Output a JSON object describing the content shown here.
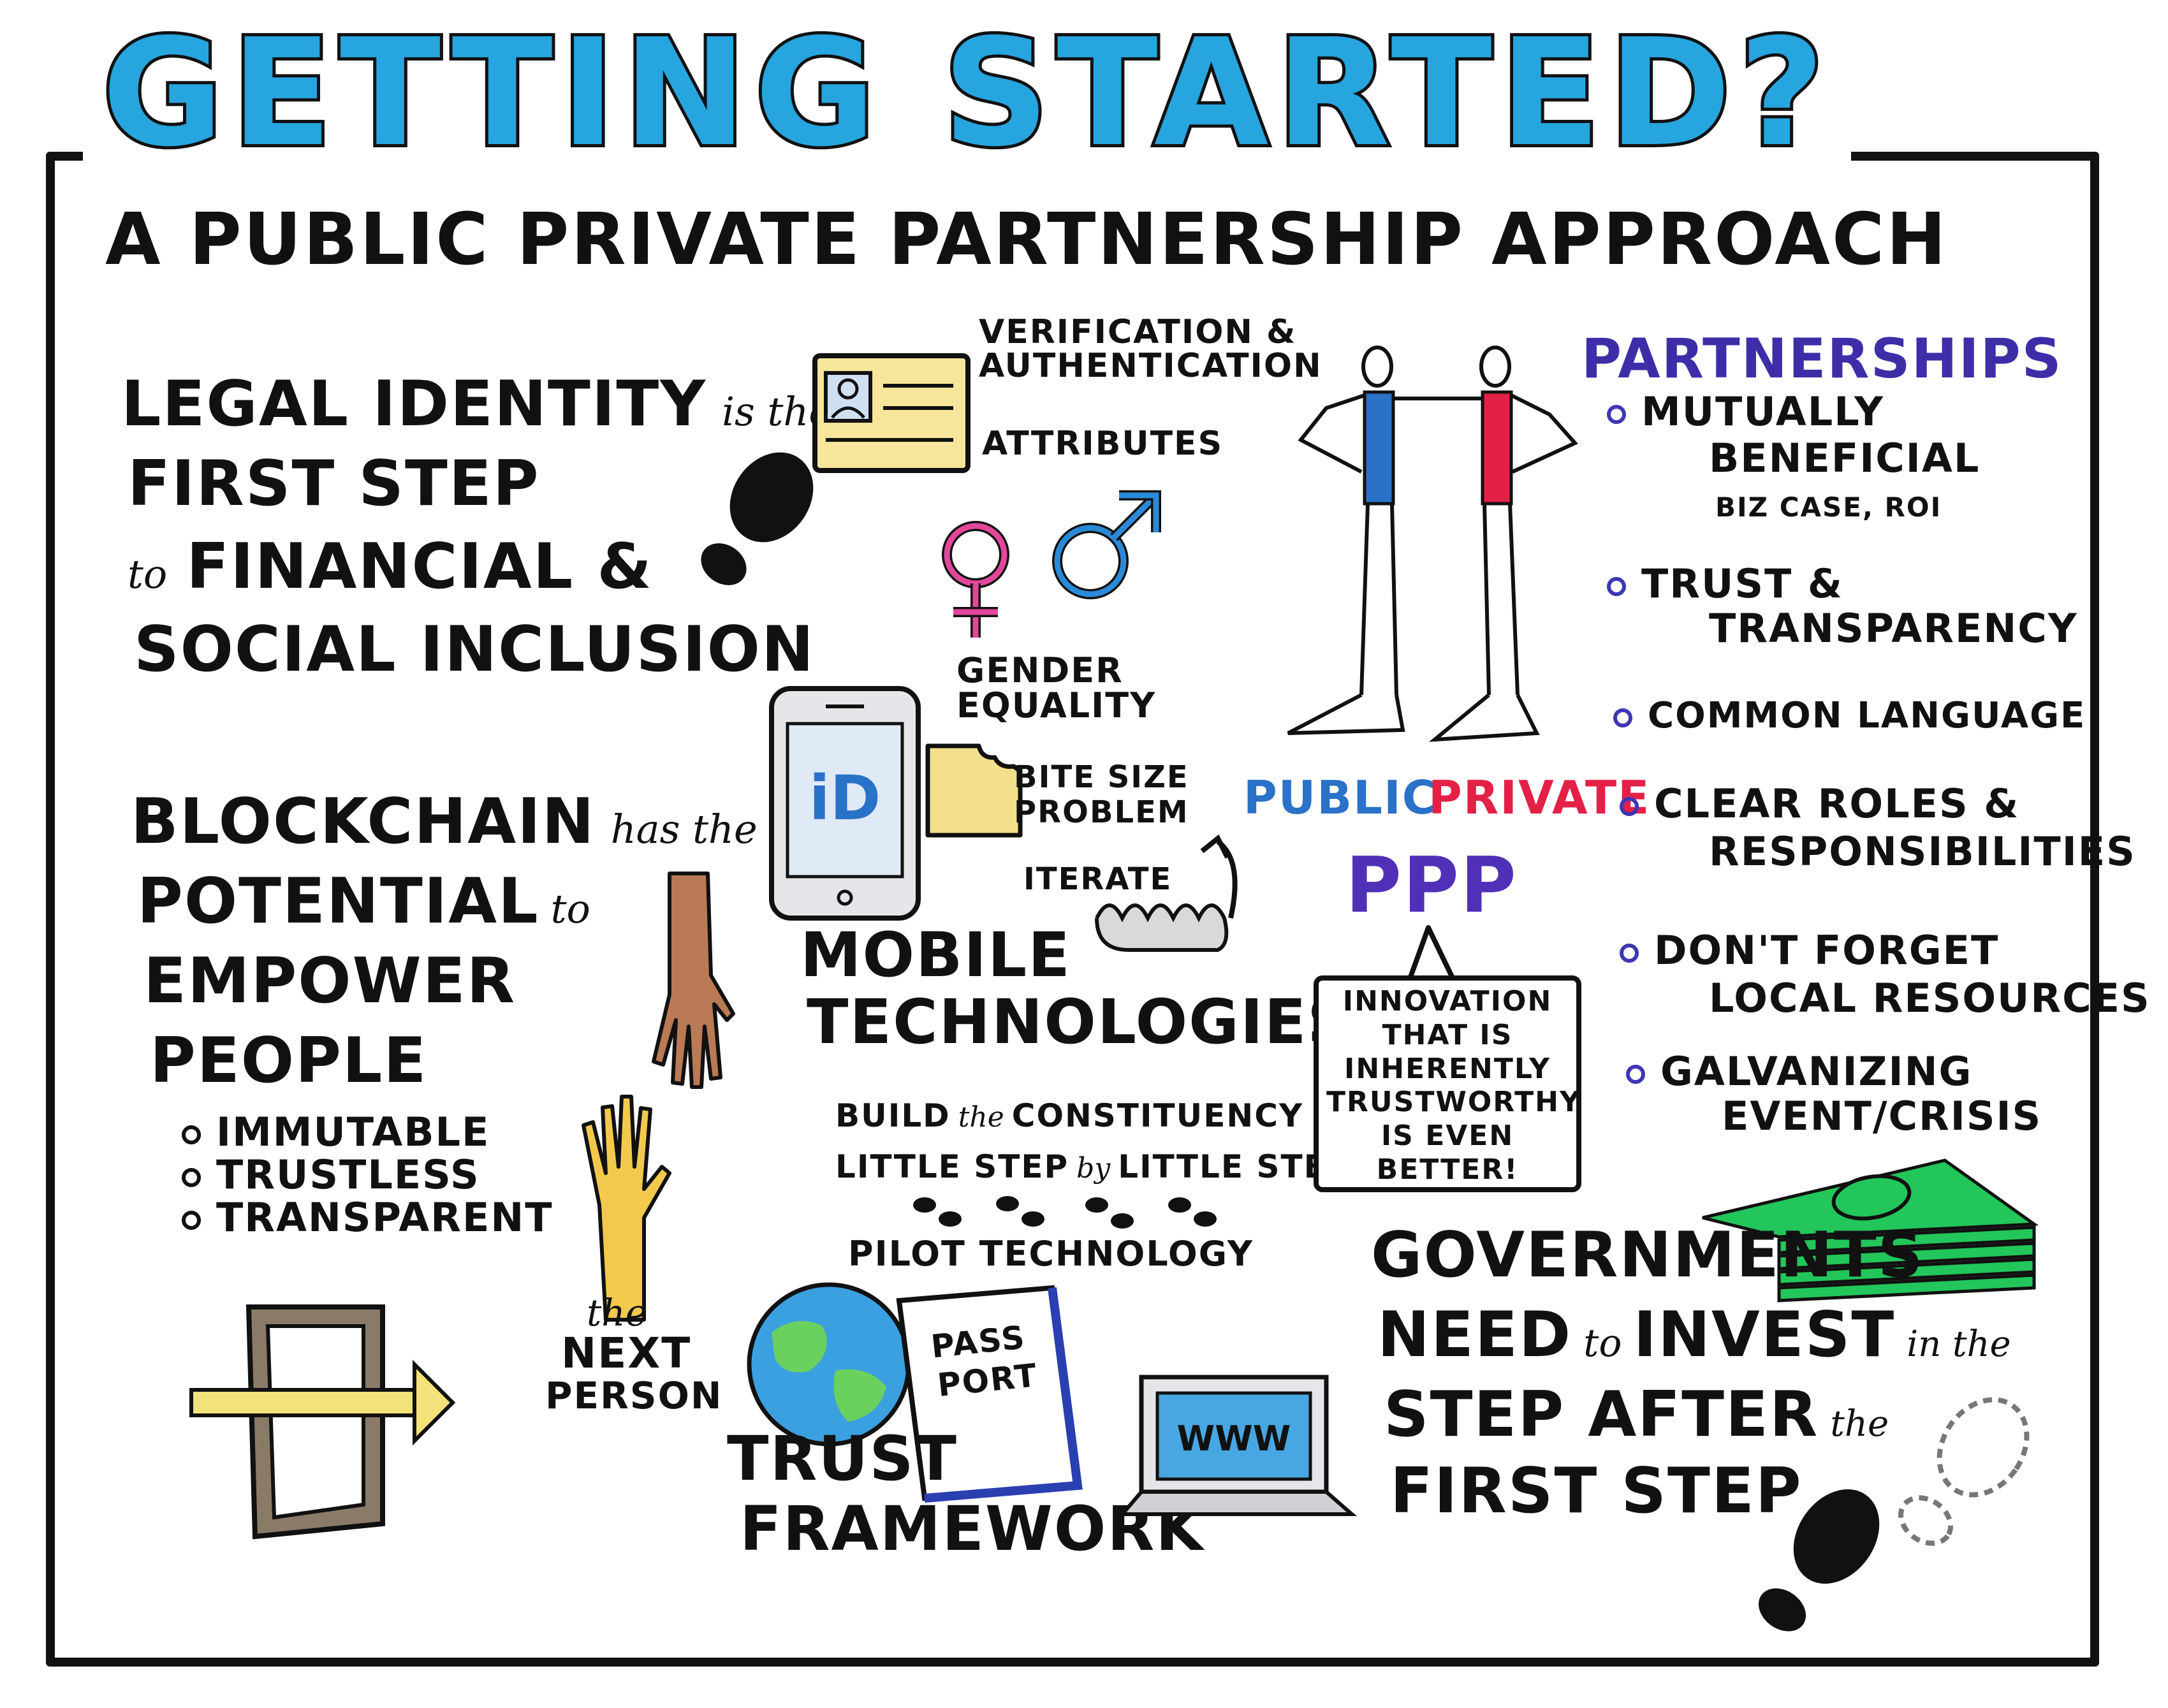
{
  "title": "GETTING STARTED?",
  "subtitle": "A PUBLIC PRIVATE PARTNERSHIP APPROACH",
  "legal_identity": {
    "line1": "LEGAL IDENTITY",
    "line1_script": "is the",
    "line2": "FIRST STEP",
    "line3_script": "to",
    "line3": "FINANCIAL &",
    "line4": "SOCIAL INCLUSION"
  },
  "id_card": {
    "label_top": [
      "VERIFICATION &",
      "AUTHENTICATION"
    ],
    "label_attr": "ATTRIBUTES"
  },
  "gender": [
    "GENDER",
    "EQUALITY"
  ],
  "blockchain": {
    "line1": "BLOCKCHAIN",
    "line1_script": "has the",
    "line2": "POTENTIAL",
    "line2_script": "to",
    "line3": "EMPOWER",
    "line4": "PEOPLE",
    "bullets": [
      "IMMUTABLE",
      "TRUSTLESS",
      "TRANSPARENT"
    ]
  },
  "mobile": {
    "phone_logo": "iD",
    "bite": [
      "BITE SIZE",
      "PROBLEM"
    ],
    "iterate": "ITERATE",
    "title": [
      "MOBILE",
      "TECHNOLOGIES"
    ]
  },
  "next_person": {
    "script": "the",
    "lines": [
      "NEXT",
      "PERSON"
    ]
  },
  "constituency": {
    "line1": "BUILD",
    "line1_script": "the",
    "line1b": "CONSTITUENCY",
    "line2a": "LITTLE STEP",
    "line2_script": "by",
    "line2b": "LITTLE STEP",
    "line3": "PILOT TECHNOLOGY"
  },
  "trust": {
    "passport": [
      "PASS",
      "PORT"
    ],
    "title": [
      "TRUST",
      "FRAMEWORK"
    ],
    "laptop_screen": "WWW"
  },
  "ppp": {
    "public": "PUBLIC",
    "private": "PRIVATE",
    "acronym": "PPP",
    "speech": "INNOVATION THAT IS INHERENTLY TRUSTWORTHY IS EVEN BETTER!"
  },
  "partnerships": {
    "heading": "PARTNERSHIPS",
    "items": [
      {
        "lines": [
          "MUTUALLY",
          "BENEFICIAL"
        ],
        "sub": "BIZ CASE, ROI"
      },
      {
        "lines": [
          "TRUST &",
          "TRANSPARENCY"
        ]
      },
      {
        "lines": [
          "COMMON LANGUAGE"
        ]
      },
      {
        "lines": [
          "CLEAR ROLES &",
          "RESPONSIBILITIES"
        ]
      },
      {
        "lines": [
          "DON'T FORGET",
          "LOCAL RESOURCES"
        ]
      },
      {
        "lines": [
          "GALVANIZING",
          "EVENT/CRISIS"
        ]
      }
    ]
  },
  "governments": {
    "line1": "GOVERNMENTS",
    "line2a": "NEED",
    "line2_script1": "to",
    "line2b": "INVEST",
    "line2_script2": "in the",
    "line3a": "STEP AFTER",
    "line3_script": "the",
    "line4": "FIRST STEP"
  },
  "colors": {
    "title_blue": "#27a5df",
    "public_blue": "#2a71c8",
    "private_red": "#e32147",
    "purple": "#5130b8",
    "card_yellow": "#f6e59a",
    "money_green": "#22c65a",
    "pink": "#e2479a"
  },
  "icons": [
    "id-card-icon",
    "shoe-print-icon",
    "female-symbol-icon",
    "male-symbol-icon",
    "two-people-icon",
    "smartphone-icon",
    "bite-cookie-icon",
    "iterate-spiral-icon",
    "hand-icon",
    "door-exit-icon",
    "footprints-icon",
    "globe-icon",
    "passport-icon",
    "laptop-icon",
    "money-stack-icon"
  ]
}
